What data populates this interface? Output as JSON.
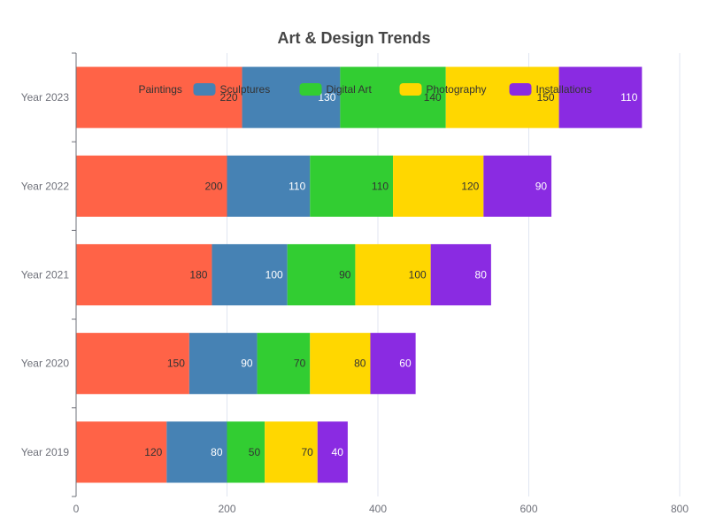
{
  "chart_data": {
    "type": "bar",
    "orientation": "horizontal",
    "stacked": true,
    "title": "Art & Design Trends",
    "categories": [
      "Year 2019",
      "Year 2020",
      "Year 2021",
      "Year 2022",
      "Year 2023"
    ],
    "series": [
      {
        "name": "Paintings",
        "color": "#ff6347",
        "label_color": "#333333",
        "values": [
          120,
          150,
          180,
          200,
          220
        ]
      },
      {
        "name": "Sculptures",
        "color": "#4682b4",
        "label_color": "#ffffff",
        "values": [
          80,
          90,
          100,
          110,
          130
        ]
      },
      {
        "name": "Digital Art",
        "color": "#32cd32",
        "label_color": "#333333",
        "values": [
          50,
          70,
          90,
          110,
          140
        ]
      },
      {
        "name": "Photography",
        "color": "#ffd700",
        "label_color": "#333333",
        "values": [
          70,
          80,
          100,
          120,
          150
        ]
      },
      {
        "name": "Installations",
        "color": "#8a2be2",
        "label_color": "#ffffff",
        "values": [
          40,
          60,
          80,
          90,
          110
        ]
      }
    ],
    "xlim": [
      0,
      800
    ],
    "x_ticks": [
      0,
      200,
      400,
      600,
      800
    ],
    "grid": true,
    "legend_position": "top-center"
  }
}
